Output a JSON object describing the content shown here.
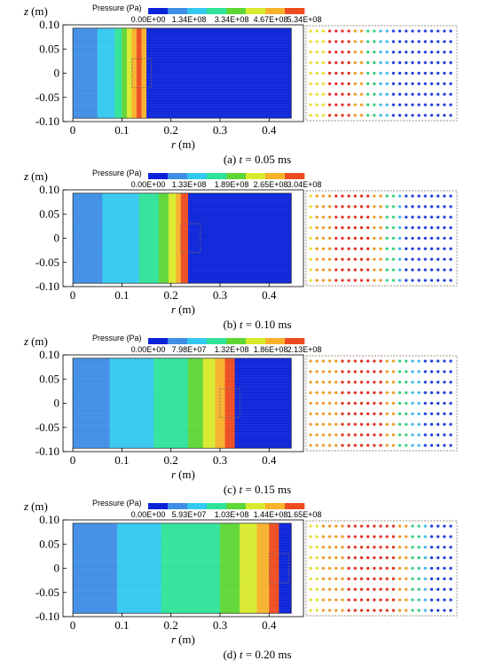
{
  "figure": {
    "z_axis_label": "z",
    "z_axis_unit": "(m)",
    "r_axis_label": "r",
    "r_axis_unit": "(m)",
    "colorbar_title": "Pressure (Pa)",
    "colormap": [
      "#0a22d9",
      "#3f8ee6",
      "#34c8f0",
      "#2fe39a",
      "#5ed634",
      "#d8ea2c",
      "#f7b12a",
      "#ee4b1f"
    ],
    "domain_outline_color": "#000000",
    "zoom_box_color": "#7a6a55"
  },
  "chart_data": [
    {
      "type": "heatmap",
      "caption_prefix": "(a) ",
      "caption_var": "t",
      "caption_suffix": " = 0.05 ms",
      "colorbar_labels": [
        "0.00E+00",
        "1.34E+08",
        "3.34E+08",
        "4.67E+08",
        "5.34E+08"
      ],
      "x_ticks": [
        "0",
        "0.1",
        "0.2",
        "0.3",
        "0.4"
      ],
      "y_ticks": [
        "0.10",
        "0.05",
        "0",
        "-0.05",
        "-0.10"
      ],
      "xlim": [
        -0.02,
        0.47
      ],
      "ylim": [
        -0.1,
        0.1
      ],
      "bands": [
        [
          0.0,
          0.02,
          1
        ],
        [
          0.02,
          0.04,
          1
        ],
        [
          0.04,
          0.05,
          1
        ],
        [
          0.05,
          0.065,
          2
        ],
        [
          0.065,
          0.085,
          2
        ],
        [
          0.085,
          0.1,
          3
        ],
        [
          0.1,
          0.11,
          4
        ],
        [
          0.11,
          0.12,
          5
        ],
        [
          0.12,
          0.13,
          6
        ],
        [
          0.13,
          0.14,
          7
        ],
        [
          0.14,
          0.15,
          6
        ],
        [
          0.15,
          0.445,
          0
        ]
      ],
      "zoom_box": [
        0.12,
        0.16
      ],
      "dot_rows": [
        [
          "y",
          "y",
          "y",
          "r",
          "r",
          "r",
          "r",
          "o",
          "o",
          "g",
          "g",
          "c",
          "c",
          "b",
          "b",
          "b",
          "b",
          "b",
          "b",
          "b",
          "b",
          "b",
          "b"
        ],
        [
          "y",
          "y",
          "y",
          "r",
          "r",
          "r",
          "r",
          "o",
          "o",
          "g",
          "g",
          "c",
          "c",
          "b",
          "b",
          "b",
          "b",
          "b",
          "b",
          "b",
          "b",
          "b",
          "b"
        ]
      ]
    },
    {
      "type": "heatmap",
      "caption_prefix": "(b) ",
      "caption_var": "t",
      "caption_suffix": " = 0.10 ms",
      "colorbar_labels": [
        "0.00E+00",
        "1.33E+08",
        "1.89E+08",
        "2.65E+08",
        "3.04E+08"
      ],
      "x_ticks": [
        "0",
        "0.1",
        "0.2",
        "0.3",
        "0.4"
      ],
      "y_ticks": [
        "0.10",
        "0.05",
        "0",
        "-0.05",
        "-0.10"
      ],
      "xlim": [
        -0.02,
        0.47
      ],
      "ylim": [
        -0.1,
        0.1
      ],
      "bands": [
        [
          0.0,
          0.05,
          1
        ],
        [
          0.05,
          0.06,
          1
        ],
        [
          0.06,
          0.135,
          2
        ],
        [
          0.135,
          0.175,
          3
        ],
        [
          0.175,
          0.195,
          4
        ],
        [
          0.195,
          0.21,
          5
        ],
        [
          0.21,
          0.22,
          6
        ],
        [
          0.22,
          0.235,
          7
        ],
        [
          0.235,
          0.445,
          0
        ]
      ],
      "zoom_box": [
        0.22,
        0.26
      ],
      "dot_rows": [
        [
          "y",
          "o",
          "o",
          "o",
          "r",
          "r",
          "r",
          "r",
          "r",
          "r",
          "o",
          "o",
          "g",
          "g",
          "c",
          "b",
          "b",
          "b",
          "b",
          "b",
          "b",
          "b",
          "b"
        ]
      ]
    },
    {
      "type": "heatmap",
      "caption_prefix": "(c) ",
      "caption_var": "t",
      "caption_suffix": " = 0.15 ms",
      "colorbar_labels": [
        "0.00E+00",
        "7.98E+07",
        "1.32E+08",
        "1.86E+08",
        "2.13E+08"
      ],
      "x_ticks": [
        "0",
        "0.1",
        "0.2",
        "0.3",
        "0.4"
      ],
      "y_ticks": [
        "0.10",
        "0.05",
        "0",
        "-0.05",
        "-0.10"
      ],
      "xlim": [
        -0.02,
        0.47
      ],
      "ylim": [
        -0.1,
        0.1
      ],
      "bands": [
        [
          0.0,
          0.055,
          1
        ],
        [
          0.055,
          0.075,
          1
        ],
        [
          0.075,
          0.165,
          2
        ],
        [
          0.165,
          0.235,
          3
        ],
        [
          0.235,
          0.265,
          4
        ],
        [
          0.265,
          0.29,
          5
        ],
        [
          0.29,
          0.31,
          6
        ],
        [
          0.31,
          0.33,
          7
        ],
        [
          0.33,
          0.445,
          0
        ]
      ],
      "zoom_box": [
        0.3,
        0.34
      ],
      "dot_rows": [
        [
          "o",
          "o",
          "o",
          "o",
          "o",
          "r",
          "r",
          "r",
          "r",
          "r",
          "r",
          "r",
          "o",
          "o",
          "g",
          "g",
          "c",
          "c",
          "b",
          "b",
          "b",
          "b",
          "b"
        ]
      ]
    },
    {
      "type": "heatmap",
      "caption_prefix": "(d) ",
      "caption_var": "t",
      "caption_suffix": " = 0.20 ms",
      "colorbar_labels": [
        "0.00E+00",
        "5.93E+07",
        "1.03E+08",
        "1.44E+08",
        "1.65E+08"
      ],
      "x_ticks": [
        "0",
        "0.1",
        "0.2",
        "0.3",
        "0.4"
      ],
      "y_ticks": [
        "0.10",
        "0.05",
        "0",
        "-0.05",
        "-0.10"
      ],
      "xlim": [
        -0.02,
        0.47
      ],
      "ylim": [
        -0.1,
        0.1
      ],
      "bands": [
        [
          0.0,
          0.065,
          1
        ],
        [
          0.065,
          0.09,
          1
        ],
        [
          0.09,
          0.18,
          2
        ],
        [
          0.18,
          0.3,
          3
        ],
        [
          0.3,
          0.34,
          4
        ],
        [
          0.34,
          0.375,
          5
        ],
        [
          0.375,
          0.4,
          6
        ],
        [
          0.4,
          0.42,
          7
        ],
        [
          0.42,
          0.445,
          0
        ]
      ],
      "zoom_box": [
        0.4,
        0.44
      ],
      "dot_rows": [
        [
          "y",
          "y",
          "o",
          "o",
          "o",
          "o",
          "r",
          "r",
          "r",
          "r",
          "r",
          "r",
          "r",
          "r",
          "o",
          "o",
          "g",
          "g",
          "c",
          "b",
          "b",
          "b",
          "b"
        ]
      ]
    }
  ]
}
